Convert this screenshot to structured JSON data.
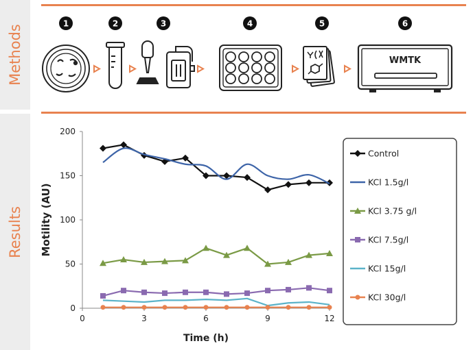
{
  "sections": {
    "methods_label": "Methods",
    "results_label": "Results"
  },
  "methods": {
    "steps": [
      "1",
      "2",
      "3",
      "4",
      "5",
      "6"
    ],
    "device_label": "WMTK",
    "accent_color": "#e8824f"
  },
  "chart_data": {
    "type": "line",
    "xlabel": "Time (h)",
    "ylabel": "Motility (AU)",
    "xlim": [
      0,
      12
    ],
    "ylim": [
      0,
      200
    ],
    "xticks": [
      0,
      3,
      6,
      9,
      12
    ],
    "yticks": [
      0,
      50,
      100,
      150,
      200
    ],
    "grid": false,
    "legend": "right",
    "x": [
      1,
      2,
      3,
      4,
      5,
      6,
      7,
      8,
      9,
      10,
      11,
      12
    ],
    "series": [
      {
        "name": "Control",
        "color": "#111111",
        "marker": "diamond",
        "smooth": false,
        "values": [
          181,
          185,
          173,
          166,
          170,
          150,
          150,
          148,
          134,
          140,
          142,
          142
        ]
      },
      {
        "name": "KCl 1.5g/l",
        "color": "#3d64a8",
        "marker": "none",
        "smooth": true,
        "values": [
          165,
          181,
          174,
          169,
          163,
          161,
          146,
          163,
          150,
          146,
          151,
          141
        ]
      },
      {
        "name": "KCl 3.75 g/l",
        "color": "#7a9a45",
        "marker": "triangle",
        "smooth": false,
        "values": [
          51,
          55,
          52,
          53,
          54,
          68,
          60,
          68,
          50,
          52,
          60,
          62
        ]
      },
      {
        "name": "KCl 7.5g/l",
        "color": "#8a6ab0",
        "marker": "square",
        "smooth": false,
        "values": [
          14,
          20,
          18,
          17,
          18,
          18,
          16,
          17,
          20,
          21,
          23,
          20
        ]
      },
      {
        "name": "KCl 15g/l",
        "color": "#5bb3c9",
        "marker": "none",
        "smooth": false,
        "values": [
          9,
          8,
          7,
          9,
          9,
          10,
          9,
          11,
          3,
          6,
          7,
          4
        ]
      },
      {
        "name": "KCl 30g/l",
        "color": "#e8824f",
        "marker": "circle",
        "smooth": false,
        "values": [
          1,
          1,
          1,
          1,
          1,
          1,
          1,
          1,
          1,
          1,
          1,
          1
        ]
      }
    ]
  }
}
